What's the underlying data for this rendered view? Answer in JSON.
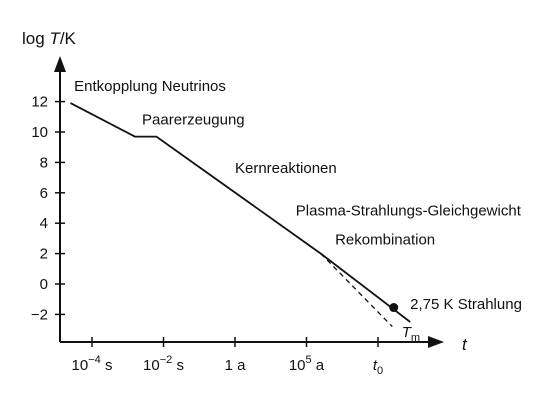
{
  "chart_data": {
    "type": "line",
    "xlabel": "t",
    "ylabel": "log T/K",
    "ylabel_parts": {
      "prefix": "log ",
      "var": "T",
      "suffix": "/K"
    },
    "y_ticks": [
      12,
      10,
      8,
      6,
      4,
      2,
      0,
      -2
    ],
    "y_tick_labels": [
      "12",
      "10",
      "8",
      "6",
      "4",
      "2",
      "0",
      "−2"
    ],
    "ylim": [
      -4,
      15
    ],
    "x_ticks": [
      {
        "base": "10",
        "exp": "−4",
        "unit": " s"
      },
      {
        "base": "10",
        "exp": "−2",
        "unit": " s"
      },
      {
        "base": "1 a",
        "exp": "",
        "unit": ""
      },
      {
        "base": "10",
        "exp": "5",
        "unit": " a"
      },
      {
        "base": "t",
        "exp": "",
        "sub": "0",
        "unit": ""
      }
    ],
    "x_tick_index": [
      0,
      1,
      2,
      3,
      4
    ],
    "xlim": [
      -0.45,
      5.2
    ],
    "series": [
      {
        "points": [
          {
            "x": -0.3,
            "y": 11.9
          },
          {
            "x": 0.6,
            "y": 9.7
          },
          {
            "x": 0.9,
            "y": 9.7
          },
          {
            "x": 3.2,
            "y": 2.0
          },
          {
            "x": 4.45,
            "y": -2.5
          }
        ],
        "style": "solid"
      },
      {
        "points": [
          {
            "x": 3.2,
            "y": 2.0
          },
          {
            "x": 4.2,
            "y": -2.8
          }
        ],
        "style": "dashed"
      }
    ],
    "marker": {
      "x": 4.22,
      "y": -1.55
    },
    "annotations": [
      {
        "text": "Entkopplung Neutrinos",
        "x": -0.25,
        "y": 12.7
      },
      {
        "text": "Paarerzeugung",
        "x": 0.7,
        "y": 10.5
      },
      {
        "text": "Kernreaktionen",
        "x": 2.0,
        "y": 7.3
      },
      {
        "text": "Plasma-Strahlungs-Gleichgewicht",
        "x": 2.85,
        "y": 4.5
      },
      {
        "text": "Rekombination",
        "x": 3.4,
        "y": 2.6
      },
      {
        "text": "2,75 K Strahlung",
        "x": 4.45,
        "y": -1.65
      }
    ],
    "tm_label": {
      "var": "T",
      "sub": "m",
      "x": 4.22,
      "y": -3.1
    },
    "grid": false
  }
}
